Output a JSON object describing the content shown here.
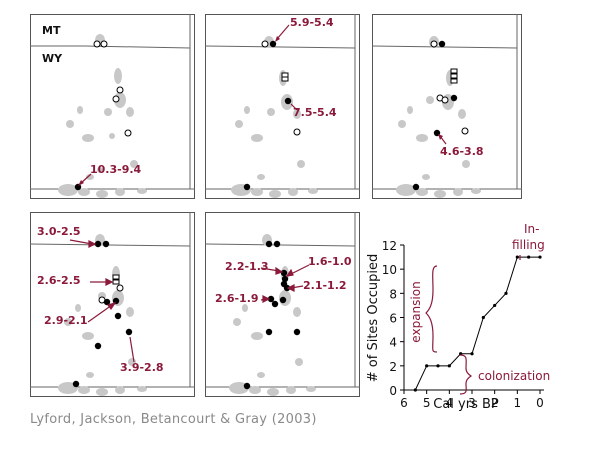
{
  "state_labels": {
    "north": "MT",
    "south": "WY"
  },
  "panels": [
    {
      "labels": [
        "10.3-9.4"
      ]
    },
    {
      "labels": [
        "5.9-5.4",
        "7.5-5.4"
      ]
    },
    {
      "labels": [
        "4.6-3.8"
      ]
    },
    {
      "labels": [
        "3.0-2.5",
        "2.6-2.5",
        "2.9-2.1",
        "3.9-2.8"
      ]
    },
    {
      "labels": [
        "2.2-1.3",
        "1.6-1.0",
        "2.1-1.2",
        "2.6-1.9"
      ]
    }
  ],
  "citation": "Lyford, Jackson, Betancourt & Gray (2003)",
  "colors": {
    "label": "#8b1a3a",
    "range": "#c8c8c8",
    "occupied": "#000000",
    "border": "#555555"
  },
  "chart_data": {
    "type": "line",
    "xlabel": "Cal yrs BP",
    "ylabel": "# of Sites Occupied",
    "x_reversed": true,
    "xlim": [
      0,
      6
    ],
    "ylim": [
      0,
      12
    ],
    "x_ticks": [
      6,
      5,
      4,
      3,
      2,
      1,
      0
    ],
    "y_ticks": [
      0,
      2,
      4,
      6,
      8,
      10,
      12
    ],
    "x": [
      5.5,
      5.0,
      4.5,
      4.0,
      3.5,
      3.0,
      2.5,
      2.0,
      1.5,
      1.0,
      0.5,
      0.0
    ],
    "y": [
      0,
      2,
      2,
      2,
      3,
      3,
      6,
      7,
      8,
      11,
      11,
      11
    ],
    "annotations": {
      "colonization": "colonization",
      "expansion": "expansion",
      "infilling_1": "In-",
      "infilling_2": "filling"
    }
  }
}
